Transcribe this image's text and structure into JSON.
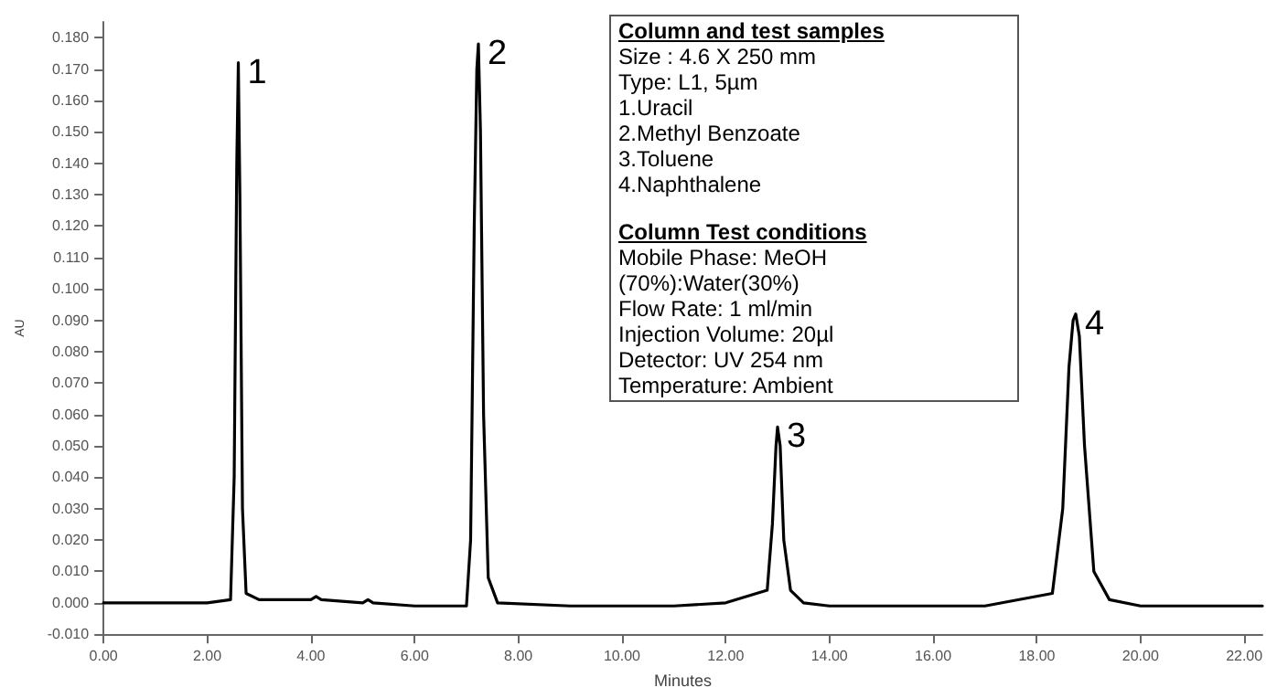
{
  "chart_data": {
    "type": "line",
    "xlabel": "Minutes",
    "ylabel": "AU",
    "x": [
      0,
      1,
      2,
      2.45,
      2.52,
      2.57,
      2.6,
      2.63,
      2.68,
      2.75,
      3,
      4,
      4.1,
      4.2,
      5,
      5.1,
      5.2,
      6,
      7,
      7.08,
      7.15,
      7.2,
      7.23,
      7.27,
      7.33,
      7.42,
      7.6,
      9,
      11,
      12,
      12.8,
      12.9,
      12.97,
      13.0,
      13.05,
      13.12,
      13.25,
      13.5,
      14,
      15,
      17,
      18.3,
      18.5,
      18.62,
      18.7,
      18.75,
      18.82,
      18.92,
      19.1,
      19.4,
      20,
      22.35
    ],
    "series": [
      {
        "color": "#000000",
        "values": [
          0,
          0,
          0,
          0.001,
          0.04,
          0.14,
          0.172,
          0.13,
          0.03,
          0.003,
          0.001,
          0.001,
          0.002,
          0.001,
          0,
          0.001,
          0,
          -0.001,
          -0.001,
          0.02,
          0.12,
          0.17,
          0.178,
          0.15,
          0.06,
          0.008,
          0,
          -0.001,
          -0.001,
          0,
          0.004,
          0.025,
          0.05,
          0.056,
          0.05,
          0.02,
          0.004,
          0,
          -0.001,
          -0.001,
          -0.001,
          0.003,
          0.03,
          0.075,
          0.09,
          0.092,
          0.085,
          0.05,
          0.01,
          0.001,
          -0.001,
          -0.001
        ]
      }
    ],
    "xlim": [
      0,
      22.35
    ],
    "xticks": [
      {
        "value": 0,
        "label": "0.00"
      },
      {
        "value": 2,
        "label": "2.00"
      },
      {
        "value": 4,
        "label": "4.00"
      },
      {
        "value": 6,
        "label": "6.00"
      },
      {
        "value": 8,
        "label": "8.00"
      },
      {
        "value": 10,
        "label": "10.00"
      },
      {
        "value": 12,
        "label": "12.00"
      },
      {
        "value": 14,
        "label": "14.00"
      },
      {
        "value": 16,
        "label": "16.00"
      },
      {
        "value": 18,
        "label": "18.00"
      },
      {
        "value": 20,
        "label": "20.00"
      },
      {
        "value": 22,
        "label": "22.00"
      }
    ],
    "ylim": [
      -0.01,
      0.185
    ],
    "yticks": [
      {
        "value": -0.01,
        "label": "-0.010"
      },
      {
        "value": 0,
        "label": "0.000"
      },
      {
        "value": 0.01,
        "label": "0.010"
      },
      {
        "value": 0.02,
        "label": "0.020"
      },
      {
        "value": 0.03,
        "label": "0.030"
      },
      {
        "value": 0.04,
        "label": "0.040"
      },
      {
        "value": 0.05,
        "label": "0.050"
      },
      {
        "value": 0.06,
        "label": "0.060"
      },
      {
        "value": 0.07,
        "label": "0.070"
      },
      {
        "value": 0.08,
        "label": "0.080"
      },
      {
        "value": 0.09,
        "label": "0.090"
      },
      {
        "value": 0.1,
        "label": "0.100"
      },
      {
        "value": 0.11,
        "label": "0.110"
      },
      {
        "value": 0.12,
        "label": "0.120"
      },
      {
        "value": 0.13,
        "label": "0.130"
      },
      {
        "value": 0.14,
        "label": "0.140"
      },
      {
        "value": 0.15,
        "label": "0.150"
      },
      {
        "value": 0.16,
        "label": "0.160"
      },
      {
        "value": 0.17,
        "label": "0.170"
      },
      {
        "value": 0.18,
        "label": "0.180"
      }
    ],
    "grid": false,
    "marker": "none",
    "line_style": "solid",
    "annotations": [
      {
        "text": "1",
        "x": 2.6,
        "y": 0.172
      },
      {
        "text": "2",
        "x": 7.23,
        "y": 0.178
      },
      {
        "text": "3",
        "x": 13.0,
        "y": 0.056
      },
      {
        "text": "4",
        "x": 18.75,
        "y": 0.092
      },
      "Column and test samples",
      "Size : 4.6 X 250 mm",
      "Type: L1, 5µm",
      "1.Uracil",
      "2.Methyl Benzoate",
      "3.Toluene",
      "4.Naphthalene",
      "Column Test conditions",
      "Mobile Phase: MeOH",
      "(70%):Water(30%)",
      "Flow Rate: 1 ml/min",
      "Injection Volume: 20µl",
      "Detector: UV 254 nm",
      "Temperature: Ambient"
    ]
  }
}
